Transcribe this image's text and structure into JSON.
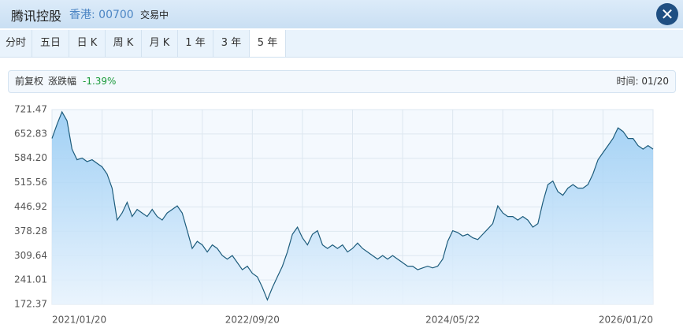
{
  "header": {
    "title": "腾讯控股",
    "market": "香港: 00700",
    "status": "交易中"
  },
  "tabs": [
    "分时",
    "五日",
    "日 K",
    "周 K",
    "月 K",
    "1 年",
    "3 年",
    "5 年"
  ],
  "info": {
    "adjust": "前复权",
    "change_label": "涨跌幅",
    "change": "-1.39%",
    "time": "时间: 01/20"
  },
  "chart_data": {
    "type": "line",
    "categories": [
      "2021/01/20",
      null,
      null,
      null,
      null,
      null,
      null,
      null,
      null,
      null,
      null,
      null,
      null,
      null,
      null,
      null,
      null,
      null,
      null,
      null,
      null,
      null,
      null,
      null,
      null,
      null,
      null,
      null,
      null,
      null,
      null,
      null,
      null,
      null,
      null,
      null,
      null,
      null,
      null,
      null,
      "2022/09/20",
      null,
      null,
      null,
      null,
      null,
      null,
      null,
      null,
      null,
      null,
      null,
      null,
      null,
      null,
      null,
      null,
      null,
      null,
      null,
      null,
      null,
      null,
      null,
      null,
      null,
      null,
      null,
      null,
      null,
      null,
      null,
      null,
      null,
      null,
      null,
      null,
      null,
      null,
      null,
      "2024/05/22",
      null,
      null,
      null,
      null,
      null,
      null,
      null,
      null,
      null,
      null,
      null,
      null,
      null,
      null,
      null,
      null,
      null,
      null,
      null,
      null,
      null,
      null,
      null,
      null,
      null,
      null,
      null,
      null,
      null,
      null,
      null,
      null,
      null,
      null,
      null,
      null,
      null,
      null,
      null,
      "2026/01/20"
    ],
    "series": [
      {
        "color": "#1d5c7c",
        "values": [
          640,
          680,
          715,
          690,
          610,
          580,
          585,
          575,
          580,
          570,
          560,
          540,
          500,
          410,
          430,
          460,
          420,
          440,
          430,
          420,
          440,
          420,
          410,
          430,
          440,
          450,
          430,
          380,
          330,
          350,
          340,
          320,
          340,
          330,
          310,
          300,
          310,
          290,
          270,
          280,
          260,
          250,
          220,
          185,
          220,
          250,
          280,
          320,
          370,
          390,
          360,
          340,
          370,
          380,
          340,
          330,
          340,
          330,
          340,
          320,
          330,
          345,
          330,
          320,
          310,
          300,
          310,
          300,
          310,
          300,
          290,
          280,
          280,
          270,
          275,
          280,
          275,
          280,
          300,
          350,
          380,
          375,
          365,
          370,
          360,
          355,
          370,
          385,
          400,
          450,
          430,
          420,
          420,
          410,
          420,
          410,
          390,
          400,
          460,
          510,
          520,
          490,
          480,
          500,
          510,
          500,
          500,
          510,
          540,
          580,
          600,
          620,
          640,
          670,
          660,
          640,
          640,
          620,
          610,
          620,
          610
        ]
      }
    ],
    "ylim": [
      172.37,
      721.47
    ],
    "yticks": [
      172.37,
      241.01,
      309.64,
      378.28,
      446.92,
      515.56,
      {
        "value": 584.2,
        "label": "584.20"
      },
      652.83,
      721.47
    ],
    "grid": true
  }
}
